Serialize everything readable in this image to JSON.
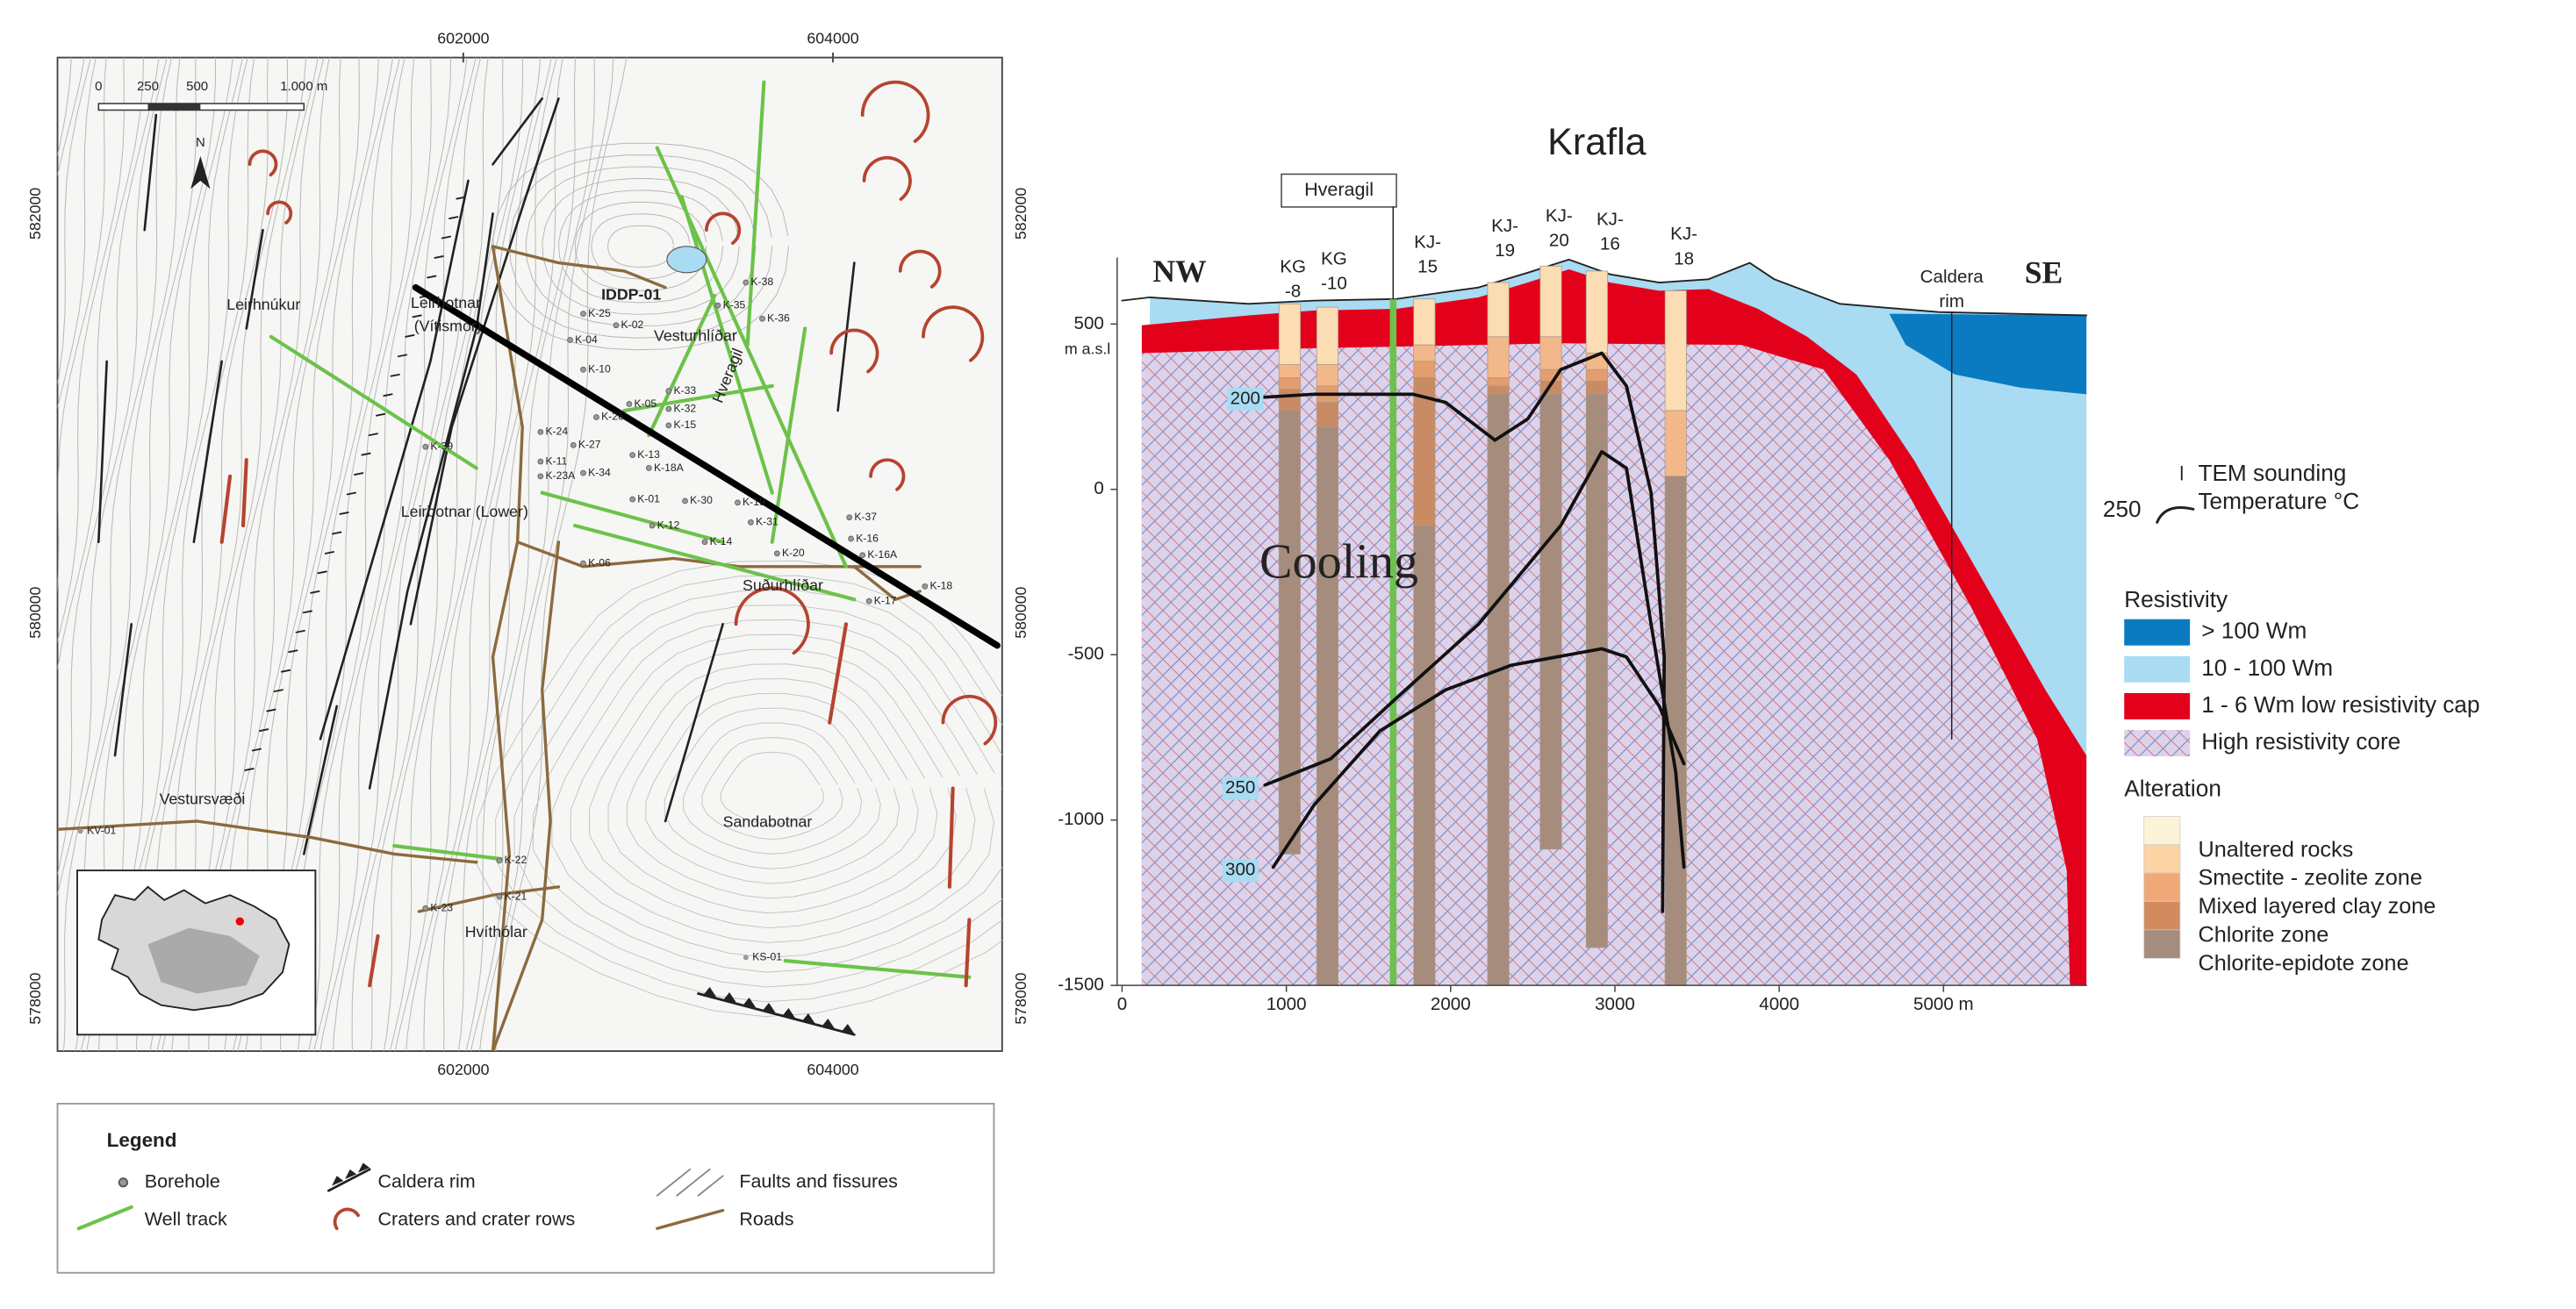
{
  "map": {
    "x_labels": [
      "602000",
      "604000"
    ],
    "y_labels": [
      "582000",
      "580000",
      "578000"
    ],
    "scale_bar": [
      "0",
      "250",
      "500",
      "1.000 m"
    ],
    "north": "N",
    "places": [
      "Leirhnúkur",
      "Leirbotnar",
      "(Vítismór)",
      "IDDP-01",
      "Vesturhlíðar",
      "Hveragil",
      "Leirbotnar (Lower)",
      "Suðurhlíðar",
      "Vestursvæði",
      "Sandabotnar",
      "Hvíthólar",
      "KV-01",
      "KS-01"
    ],
    "boreholes": [
      "K-38",
      "K-35",
      "K-36",
      "K-25",
      "K-02",
      "K-04",
      "K-10",
      "K-33",
      "K-05",
      "K-32",
      "K-15",
      "K-26",
      "K-24",
      "K-27",
      "K-13",
      "K-11",
      "K-39",
      "K-34",
      "K-18A",
      "K-23A",
      "K-01",
      "K-30",
      "K-19",
      "K-31",
      "K-12",
      "K-14",
      "K-20",
      "K-37",
      "K-16",
      "K-16A",
      "K-17",
      "K-18",
      "K-06",
      "K-22",
      "K-21",
      "K-23"
    ]
  },
  "legend": {
    "title": "Legend",
    "items": [
      "Borehole",
      "Well track",
      "Caldera rim",
      "Craters and crater rows",
      "Faults and fissures",
      "Roads"
    ]
  },
  "section": {
    "title": "Krafla",
    "directions": [
      "NW",
      "SE"
    ],
    "y_label": "m a.s.l",
    "xlim": [
      0,
      5870
    ],
    "ylim": [
      -1500,
      700
    ],
    "xticks": [
      0,
      1000,
      2000,
      3000,
      4000,
      {
        "value": 5000,
        "label": "5000 m"
      }
    ],
    "yticks": [
      500,
      0,
      -500,
      -1000,
      -1500
    ],
    "wells": [
      [
        "KG",
        "-8"
      ],
      [
        "KG",
        "-10"
      ],
      [
        "KJ-",
        "15"
      ],
      [
        "KJ-",
        "19"
      ],
      [
        "KJ-",
        "20"
      ],
      [
        "KJ-",
        "16"
      ],
      [
        "KJ-",
        "18"
      ]
    ],
    "green_well": "Hveragil",
    "caldera": [
      "Caldera",
      "rim"
    ],
    "cooling": "Cooling",
    "isotherms": [
      "200",
      "250",
      "300"
    ],
    "key": {
      "tem": "TEM sounding",
      "temp_value": "250",
      "temp": "Temperature °C",
      "resistivity": "Resistivity",
      "res_items": [
        "> 100 Wm",
        "10 - 100 Wm",
        "1 - 6 Wm low resistivity cap",
        "High resistivity core"
      ],
      "alteration": "Alteration",
      "alt_items": [
        "Unaltered rocks",
        "Smectite - zeolite zone",
        "Mixed layered clay zone",
        "Chlorite zone",
        "Chlorite-epidote zone"
      ]
    }
  }
}
